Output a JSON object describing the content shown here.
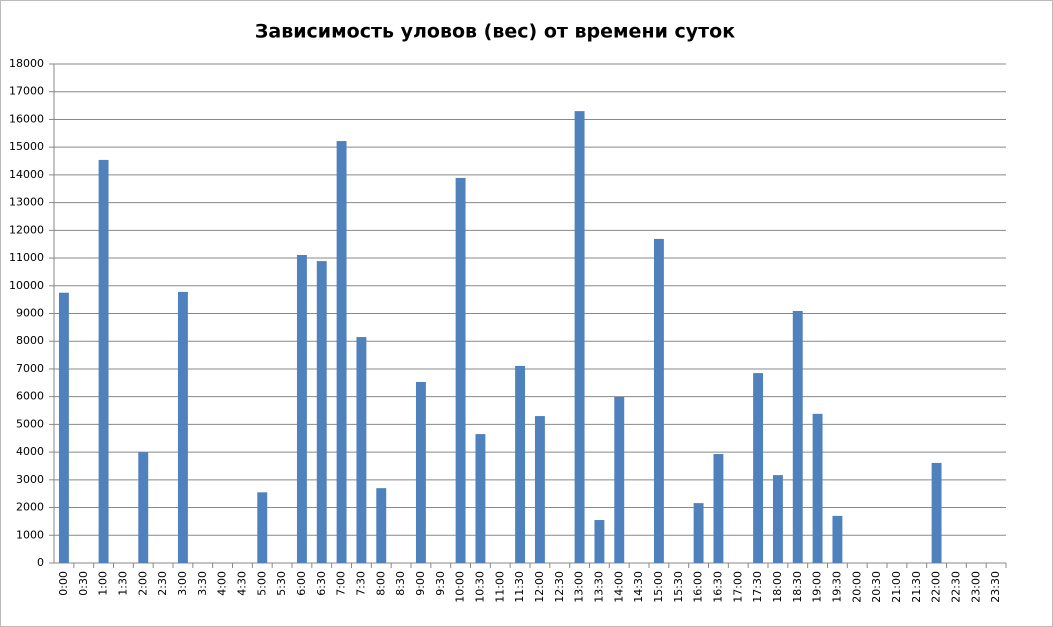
{
  "chart_data": {
    "type": "bar",
    "title": "Зависимость уловов (вес) от времени суток",
    "categories": [
      "0:00",
      "0:30",
      "1:00",
      "1:30",
      "2:00",
      "2:30",
      "3:00",
      "3:30",
      "4:00",
      "4:30",
      "5:00",
      "5:30",
      "6:00",
      "6:30",
      "7:00",
      "7:30",
      "8:00",
      "8:30",
      "9:00",
      "9:30",
      "10:00",
      "10:30",
      "11:00",
      "11:30",
      "12:00",
      "12:30",
      "13:00",
      "13:30",
      "14:00",
      "14:30",
      "15:00",
      "15:30",
      "16:00",
      "16:30",
      "17:00",
      "17:30",
      "18:00",
      "18:30",
      "19:00",
      "19:30",
      "20:00",
      "20:30",
      "21:00",
      "21:30",
      "22:00",
      "22:30",
      "23:00",
      "23:30"
    ],
    "values": [
      9750,
      0,
      14540,
      0,
      4000,
      0,
      9780,
      0,
      0,
      0,
      2550,
      0,
      11110,
      10890,
      15220,
      8150,
      2700,
      0,
      6530,
      0,
      13890,
      4650,
      0,
      7110,
      5300,
      0,
      16300,
      1550,
      5990,
      0,
      11690,
      0,
      2160,
      3930,
      0,
      6850,
      3170,
      9090,
      5380,
      1700,
      0,
      0,
      0,
      0,
      3610,
      0,
      0,
      0
    ],
    "color": "#4f81bd",
    "ylim": [
      0,
      18000
    ],
    "yticks": [
      0,
      1000,
      2000,
      3000,
      4000,
      5000,
      6000,
      7000,
      8000,
      9000,
      10000,
      11000,
      12000,
      13000,
      14000,
      15000,
      16000,
      17000,
      18000
    ],
    "grid": true
  }
}
